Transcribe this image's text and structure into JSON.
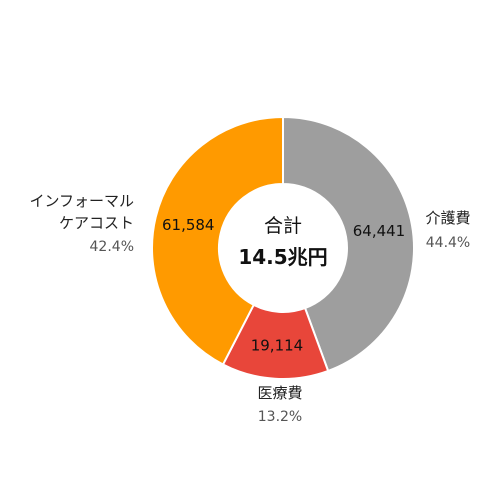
{
  "chart_data": {
    "type": "pie",
    "variant": "donut",
    "center_label": "合計",
    "center_total": "14.5兆円",
    "slices": [
      {
        "name": "介護費",
        "name_lines": [
          "介護費"
        ],
        "value": 64441,
        "value_label": "64,441",
        "percent_label": "44.4%",
        "color": "#9e9e9e"
      },
      {
        "name": "医療費",
        "name_lines": [
          "医療費"
        ],
        "value": 19114,
        "value_label": "19,114",
        "percent_label": "13.2%",
        "color": "#e8463a"
      },
      {
        "name": "インフォーマルケアコスト",
        "name_lines": [
          "インフォーマル",
          "ケアコスト"
        ],
        "value": 61584,
        "value_label": "61,584",
        "percent_label": "42.4%",
        "color": "#ff9a00"
      }
    ],
    "start_angle_deg": 0,
    "direction": "clockwise",
    "legend": "none"
  }
}
